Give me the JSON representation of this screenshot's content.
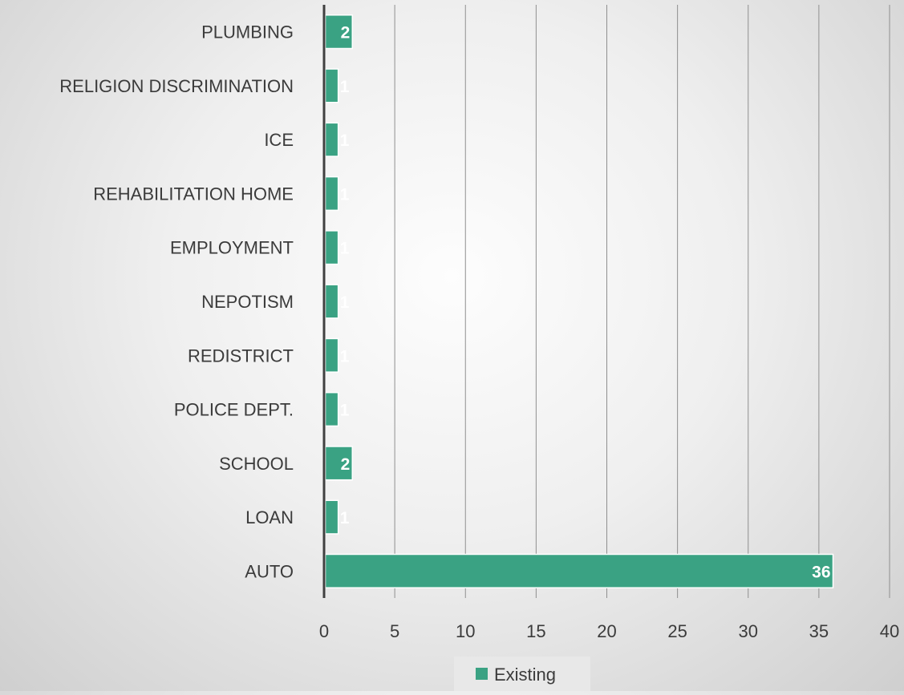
{
  "chart_data": {
    "type": "bar",
    "orientation": "horizontal",
    "categories": [
      "PLUMBING",
      "RELIGION DISCRIMINATION",
      "ICE",
      "REHABILITATION HOME",
      "EMPLOYMENT",
      "NEPOTISM",
      "REDISTRICT",
      "POLICE DEPT.",
      "SCHOOL",
      "LOAN",
      "AUTO"
    ],
    "series": [
      {
        "name": "Existing",
        "values": [
          2,
          1,
          1,
          1,
          1,
          1,
          1,
          1,
          2,
          1,
          36
        ],
        "color": "#3aa283"
      }
    ],
    "xlim": [
      0,
      40
    ],
    "x_ticks": [
      "0",
      "5",
      "10",
      "15",
      "20",
      "25",
      "30",
      "35",
      "40"
    ],
    "grid": true,
    "legend_position": "bottom",
    "data_labels": true
  },
  "legend": {
    "label": "Existing",
    "color": "#3aa283"
  }
}
